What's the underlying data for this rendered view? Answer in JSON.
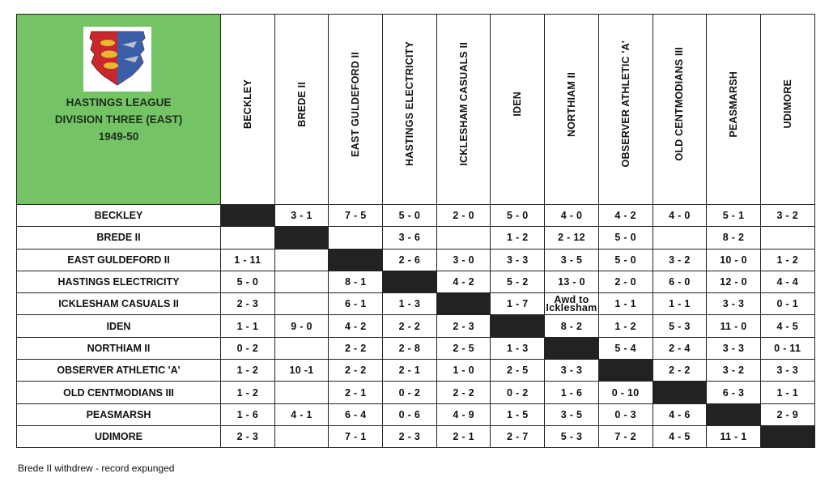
{
  "title_lines": [
    "HASTINGS LEAGUE",
    "DIVISION THREE (EAST)",
    "1949-50"
  ],
  "teams": [
    "BECKLEY",
    "BREDE II",
    "EAST GULDEFORD II",
    "HASTINGS ELECTRICITY",
    "ICKLESHAM CASUALS II",
    "IDEN",
    "NORTHIAM II",
    "OBSERVER ATHLETIC 'A'",
    "OLD CENTMODIANS III",
    "PEASMARSH",
    "UDIMORE"
  ],
  "results": [
    [
      "",
      "3 - 1",
      "7 - 5",
      "5 - 0",
      "2 - 0",
      "5 - 0",
      "4 - 0",
      "4 - 2",
      "4 - 0",
      "5 - 1",
      "3 - 2"
    ],
    [
      "",
      "",
      "",
      "3 - 6",
      "",
      "1 - 2",
      "2 - 12",
      "5 - 0",
      "",
      "8 - 2",
      ""
    ],
    [
      "1 - 11",
      "",
      "",
      "2 - 6",
      "3 - 0",
      "3 - 3",
      "3 - 5",
      "5 - 0",
      "3 - 2",
      "10 - 0",
      "1 - 2"
    ],
    [
      "5 - 0",
      "",
      "8 - 1",
      "",
      "4 - 2",
      "5 - 2",
      "13 - 0",
      "2 - 0",
      "6 - 0",
      "12 - 0",
      "4 - 4"
    ],
    [
      "2 - 3",
      "",
      "6 - 1",
      "1 - 3",
      "",
      "1 - 7",
      "Awd to Icklesham",
      "1 - 1",
      "1 - 1",
      "3 - 3",
      "0 - 1"
    ],
    [
      "1 - 1",
      "9 - 0",
      "4 - 2",
      "2 - 2",
      "2 - 3",
      "",
      "8 - 2",
      "1 - 2",
      "5 - 3",
      "11 - 0",
      "4 - 5"
    ],
    [
      "0 - 2",
      "",
      "2 - 2",
      "2 - 8",
      "2 - 5",
      "1 - 3",
      "",
      "5 - 4",
      "2 - 4",
      "3 - 3",
      "0 - 11"
    ],
    [
      "1 - 2",
      "10 -1",
      "2 - 2",
      "2 - 1",
      "1 - 0",
      "2 - 5",
      "3 - 3",
      "",
      "2 - 2",
      "3 - 2",
      "3 - 3"
    ],
    [
      "1 - 2",
      "",
      "2 - 1",
      "0 - 2",
      "2 - 2",
      "0 - 2",
      "1 - 6",
      "0 - 10",
      "",
      "6 - 3",
      "1 - 1"
    ],
    [
      "1 - 6",
      "4 - 1",
      "6 - 4",
      "0 - 6",
      "4 - 9",
      "1 - 5",
      "3 - 5",
      "0 - 3",
      "4 - 6",
      "",
      "2 - 9"
    ],
    [
      "2 - 3",
      "",
      "7 - 1",
      "2 - 3",
      "2 - 1",
      "2 - 7",
      "5 - 3",
      "7 - 2",
      "4 - 5",
      "11 - 1",
      ""
    ]
  ],
  "footnote": "Brede II withdrew - record expunged",
  "colors": {
    "header_green": "#74c466",
    "self_cell": "#222222",
    "crest_red": "#c8282d",
    "crest_blue": "#3a5fa8",
    "lion_gold": "#e8b830"
  }
}
